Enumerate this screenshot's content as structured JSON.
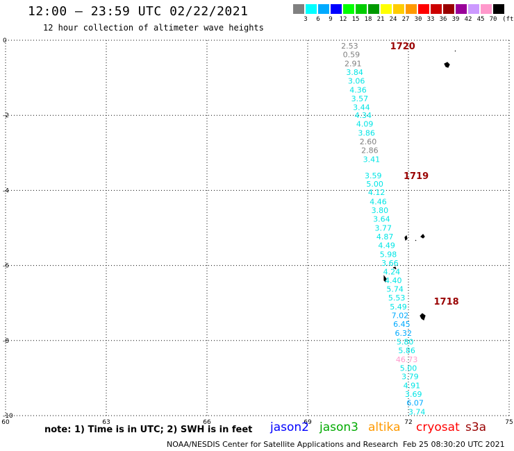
{
  "header": {
    "title": "12:00 – 23:59 UTC 02/22/2021",
    "subtitle": "12 hour collection of altimeter wave heights"
  },
  "legend": {
    "unit": "(ft)",
    "items": [
      {
        "label": "3",
        "color": "#808080"
      },
      {
        "label": "6",
        "color": "#00ffff"
      },
      {
        "label": "9",
        "color": "#00aaff"
      },
      {
        "label": "12",
        "color": "#0000ff"
      },
      {
        "label": "15",
        "color": "#00ff00"
      },
      {
        "label": "18",
        "color": "#00cc00"
      },
      {
        "label": "21",
        "color": "#009900"
      },
      {
        "label": "24",
        "color": "#ffff00"
      },
      {
        "label": "27",
        "color": "#ffcc00"
      },
      {
        "label": "30",
        "color": "#ff9900"
      },
      {
        "label": "33",
        "color": "#ff0000"
      },
      {
        "label": "36",
        "color": "#cc0000"
      },
      {
        "label": "39",
        "color": "#990000"
      },
      {
        "label": "42",
        "color": "#990099"
      },
      {
        "label": "45",
        "color": "#cc99ff"
      },
      {
        "label": "70",
        "color": "#ff99cc"
      },
      {
        "label": "",
        "color": "#000000"
      }
    ]
  },
  "axes": {
    "x_ticks": [
      "60",
      "63",
      "66",
      "69",
      "72",
      "75"
    ],
    "y_ticks": [
      "0",
      "-2",
      "-4",
      "-6",
      "-8",
      "-10"
    ],
    "lon_range": [
      60,
      75
    ],
    "lat_range": [
      -10,
      0
    ]
  },
  "pass_labels": [
    {
      "text": "1720",
      "lon": 71.0,
      "lat": -0.15
    },
    {
      "text": "1719",
      "lon": 71.4,
      "lat": -3.6
    },
    {
      "text": "1718",
      "lon": 72.3,
      "lat": -6.95
    }
  ],
  "wave_heights": [
    {
      "v": "2.53",
      "lon": 70.25,
      "lat": -0.15,
      "c": "#808080"
    },
    {
      "v": "0.59",
      "lon": 70.3,
      "lat": -0.38,
      "c": "#808080"
    },
    {
      "v": "2.91",
      "lon": 70.35,
      "lat": -0.62,
      "c": "#808080"
    },
    {
      "v": "3.84",
      "lon": 70.4,
      "lat": -0.85,
      "c": "#00e5e5"
    },
    {
      "v": "3.06",
      "lon": 70.45,
      "lat": -1.08,
      "c": "#00e5e5"
    },
    {
      "v": "4.36",
      "lon": 70.5,
      "lat": -1.32,
      "c": "#00e5e5"
    },
    {
      "v": "3.57",
      "lon": 70.55,
      "lat": -1.55,
      "c": "#00e5e5"
    },
    {
      "v": "3.44",
      "lon": 70.6,
      "lat": -1.78,
      "c": "#00e5e5"
    },
    {
      "v": "4.34",
      "lon": 70.65,
      "lat": -2.0,
      "c": "#00e5e5"
    },
    {
      "v": "4.09",
      "lon": 70.7,
      "lat": -2.23,
      "c": "#00e5e5"
    },
    {
      "v": "3.86",
      "lon": 70.75,
      "lat": -2.47,
      "c": "#00e5e5"
    },
    {
      "v": "2.60",
      "lon": 70.8,
      "lat": -2.7,
      "c": "#808080"
    },
    {
      "v": "2.86",
      "lon": 70.85,
      "lat": -2.93,
      "c": "#808080"
    },
    {
      "v": "3.41",
      "lon": 70.9,
      "lat": -3.17,
      "c": "#00e5e5"
    },
    {
      "v": "3.59",
      "lon": 70.95,
      "lat": -3.6,
      "c": "#00e5e5"
    },
    {
      "v": "5.00",
      "lon": 71.0,
      "lat": -3.83,
      "c": "#00e5e5"
    },
    {
      "v": "4.12",
      "lon": 71.05,
      "lat": -4.05,
      "c": "#00e5e5"
    },
    {
      "v": "4.46",
      "lon": 71.1,
      "lat": -4.3,
      "c": "#00e5e5"
    },
    {
      "v": "3.80",
      "lon": 71.15,
      "lat": -4.53,
      "c": "#00e5e5"
    },
    {
      "v": "3.64",
      "lon": 71.2,
      "lat": -4.76,
      "c": "#00e5e5"
    },
    {
      "v": "3.77",
      "lon": 71.25,
      "lat": -5.0,
      "c": "#00e5e5"
    },
    {
      "v": "4.87",
      "lon": 71.3,
      "lat": -5.23,
      "c": "#00e5e5"
    },
    {
      "v": "4.49",
      "lon": 71.35,
      "lat": -5.46,
      "c": "#00e5e5"
    },
    {
      "v": "5.98",
      "lon": 71.4,
      "lat": -5.7,
      "c": "#00e5e5"
    },
    {
      "v": "3.66",
      "lon": 71.45,
      "lat": -5.93,
      "c": "#00e5e5"
    },
    {
      "v": "4.24",
      "lon": 71.5,
      "lat": -6.16,
      "c": "#00e5e5"
    },
    {
      "v": "4.40",
      "lon": 71.55,
      "lat": -6.4,
      "c": "#00e5e5"
    },
    {
      "v": "5.74",
      "lon": 71.6,
      "lat": -6.63,
      "c": "#00e5e5"
    },
    {
      "v": "5.53",
      "lon": 71.65,
      "lat": -6.86,
      "c": "#00e5e5"
    },
    {
      "v": "5.49",
      "lon": 71.7,
      "lat": -7.1,
      "c": "#00e5e5"
    },
    {
      "v": "7.02",
      "lon": 71.75,
      "lat": -7.33,
      "c": "#00aaff"
    },
    {
      "v": "6.45",
      "lon": 71.8,
      "lat": -7.56,
      "c": "#00aaff"
    },
    {
      "v": "6.32",
      "lon": 71.85,
      "lat": -7.8,
      "c": "#00aaff"
    },
    {
      "v": "5.80",
      "lon": 71.9,
      "lat": -8.03,
      "c": "#00e5e5"
    },
    {
      "v": "5.86",
      "lon": 71.95,
      "lat": -8.26,
      "c": "#00e5e5"
    },
    {
      "v": "46.73",
      "lon": 71.95,
      "lat": -8.5,
      "c": "#ff99cc"
    },
    {
      "v": "5.00",
      "lon": 72.0,
      "lat": -8.73,
      "c": "#00e5e5"
    },
    {
      "v": "3.79",
      "lon": 72.05,
      "lat": -8.96,
      "c": "#00e5e5"
    },
    {
      "v": "4.91",
      "lon": 72.1,
      "lat": -9.2,
      "c": "#00e5e5"
    },
    {
      "v": "3.69",
      "lon": 72.15,
      "lat": -9.43,
      "c": "#00e5e5"
    },
    {
      "v": "6.07",
      "lon": 72.2,
      "lat": -9.66,
      "c": "#00aaff"
    },
    {
      "v": "3.74",
      "lon": 72.25,
      "lat": -9.9,
      "c": "#00e5e5"
    }
  ],
  "bottom": {
    "note": "note:  1) Time is in UTC;  2) SWH is in feet",
    "satellites": [
      {
        "name": "jason2",
        "color": "#0000ff"
      },
      {
        "name": "jason3",
        "color": "#00aa00"
      },
      {
        "name": "altika",
        "color": "#ff9900"
      },
      {
        "name": "cryosat",
        "color": "#ff0000"
      },
      {
        "name": "s3a",
        "color": "#990000"
      }
    ],
    "footer": "NOAA/NESDIS Center for Satellite Applications and Research",
    "timestamp": "Feb 25 08:30:20 UTC 2021"
  }
}
